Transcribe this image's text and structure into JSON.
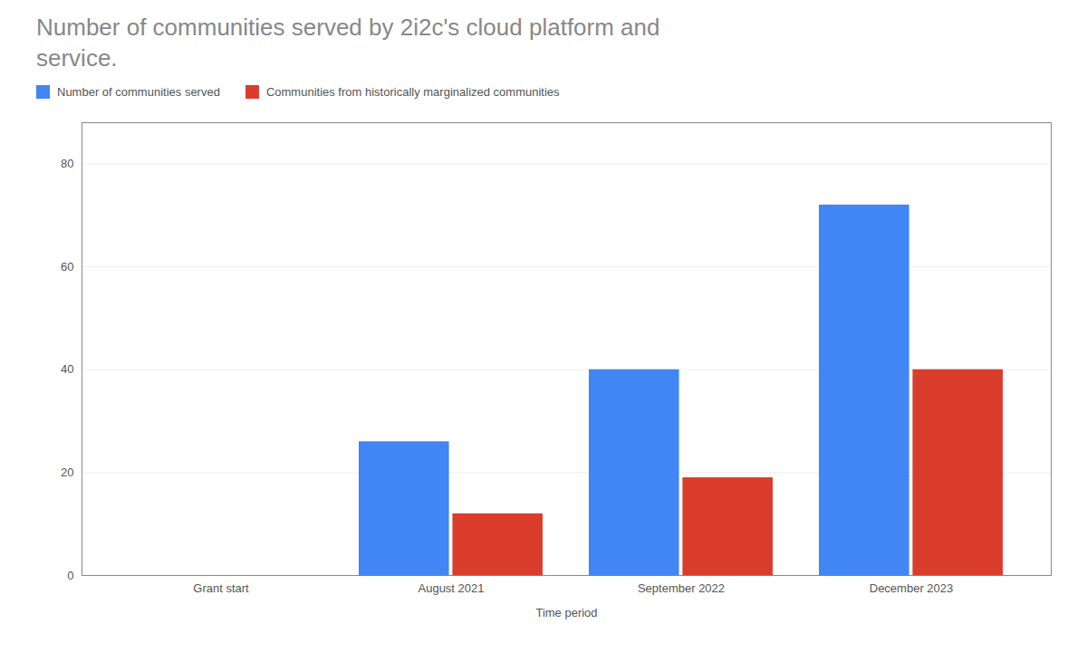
{
  "chart_data": {
    "type": "bar",
    "title": "Number of communities served by 2i2c's cloud platform and\nservice.",
    "xlabel": "Time period",
    "categories": [
      "Grant start",
      "August 2021",
      "September 2022",
      "December 2023"
    ],
    "series": [
      {
        "name": "Number of communities served",
        "color": "#4285f4",
        "values": [
          0,
          26,
          40,
          72
        ]
      },
      {
        "name": "Communities from historically marginalized communities",
        "color": "#db3d2d",
        "values": [
          0,
          12,
          19,
          40
        ]
      }
    ],
    "ylim": [
      0,
      88
    ],
    "yticks": [
      0,
      20,
      40,
      60,
      80
    ],
    "grid": true,
    "legend": "top left"
  }
}
